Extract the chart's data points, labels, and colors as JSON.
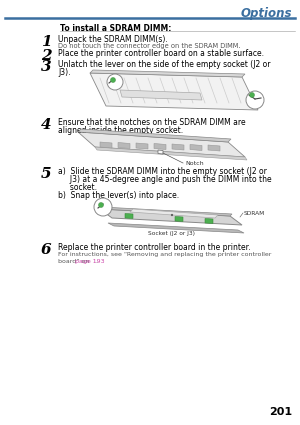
{
  "title": "Options",
  "title_color": "#3B6FA0",
  "header_line_color": "#3B6FA0",
  "page_number": "201",
  "page_bg": "#ffffff",
  "section_header": "To install a SDRAM DIMM:",
  "text_color": "#000000",
  "sub_text_color": "#555555",
  "link_color": "#CC44AA",
  "step1_main": "Unpack the SDRAM DIMM(s).",
  "step1_sub": "Do not touch the connector edge on the SDRAM DIMM.",
  "step2_main": "Place the printer controller board on a stable surface.",
  "step3_main": "Unlatch the lever on the side of the empty socket (J2 or J3).",
  "step4_main_1": "Ensure that the notches on the SDRAM DIMM are",
  "step4_main_2": "aligned inside the empty socket.",
  "step5a_1": "a)  Slide the SDRAM DIMM into the empty socket (J2 or",
  "step5a_2": "     J3) at a 45-degree angle and push the DIMM into the",
  "step5a_3": "     socket.",
  "step5b": "b)  Snap the lever(s) into place.",
  "step6_main": "Replace the printer controller board in the printer.",
  "step6_sub1": "For instructions, see “Removing and replacing the printer controller",
  "step6_sub2": "board” on ",
  "step6_link": "page 193",
  "step6_end": "."
}
